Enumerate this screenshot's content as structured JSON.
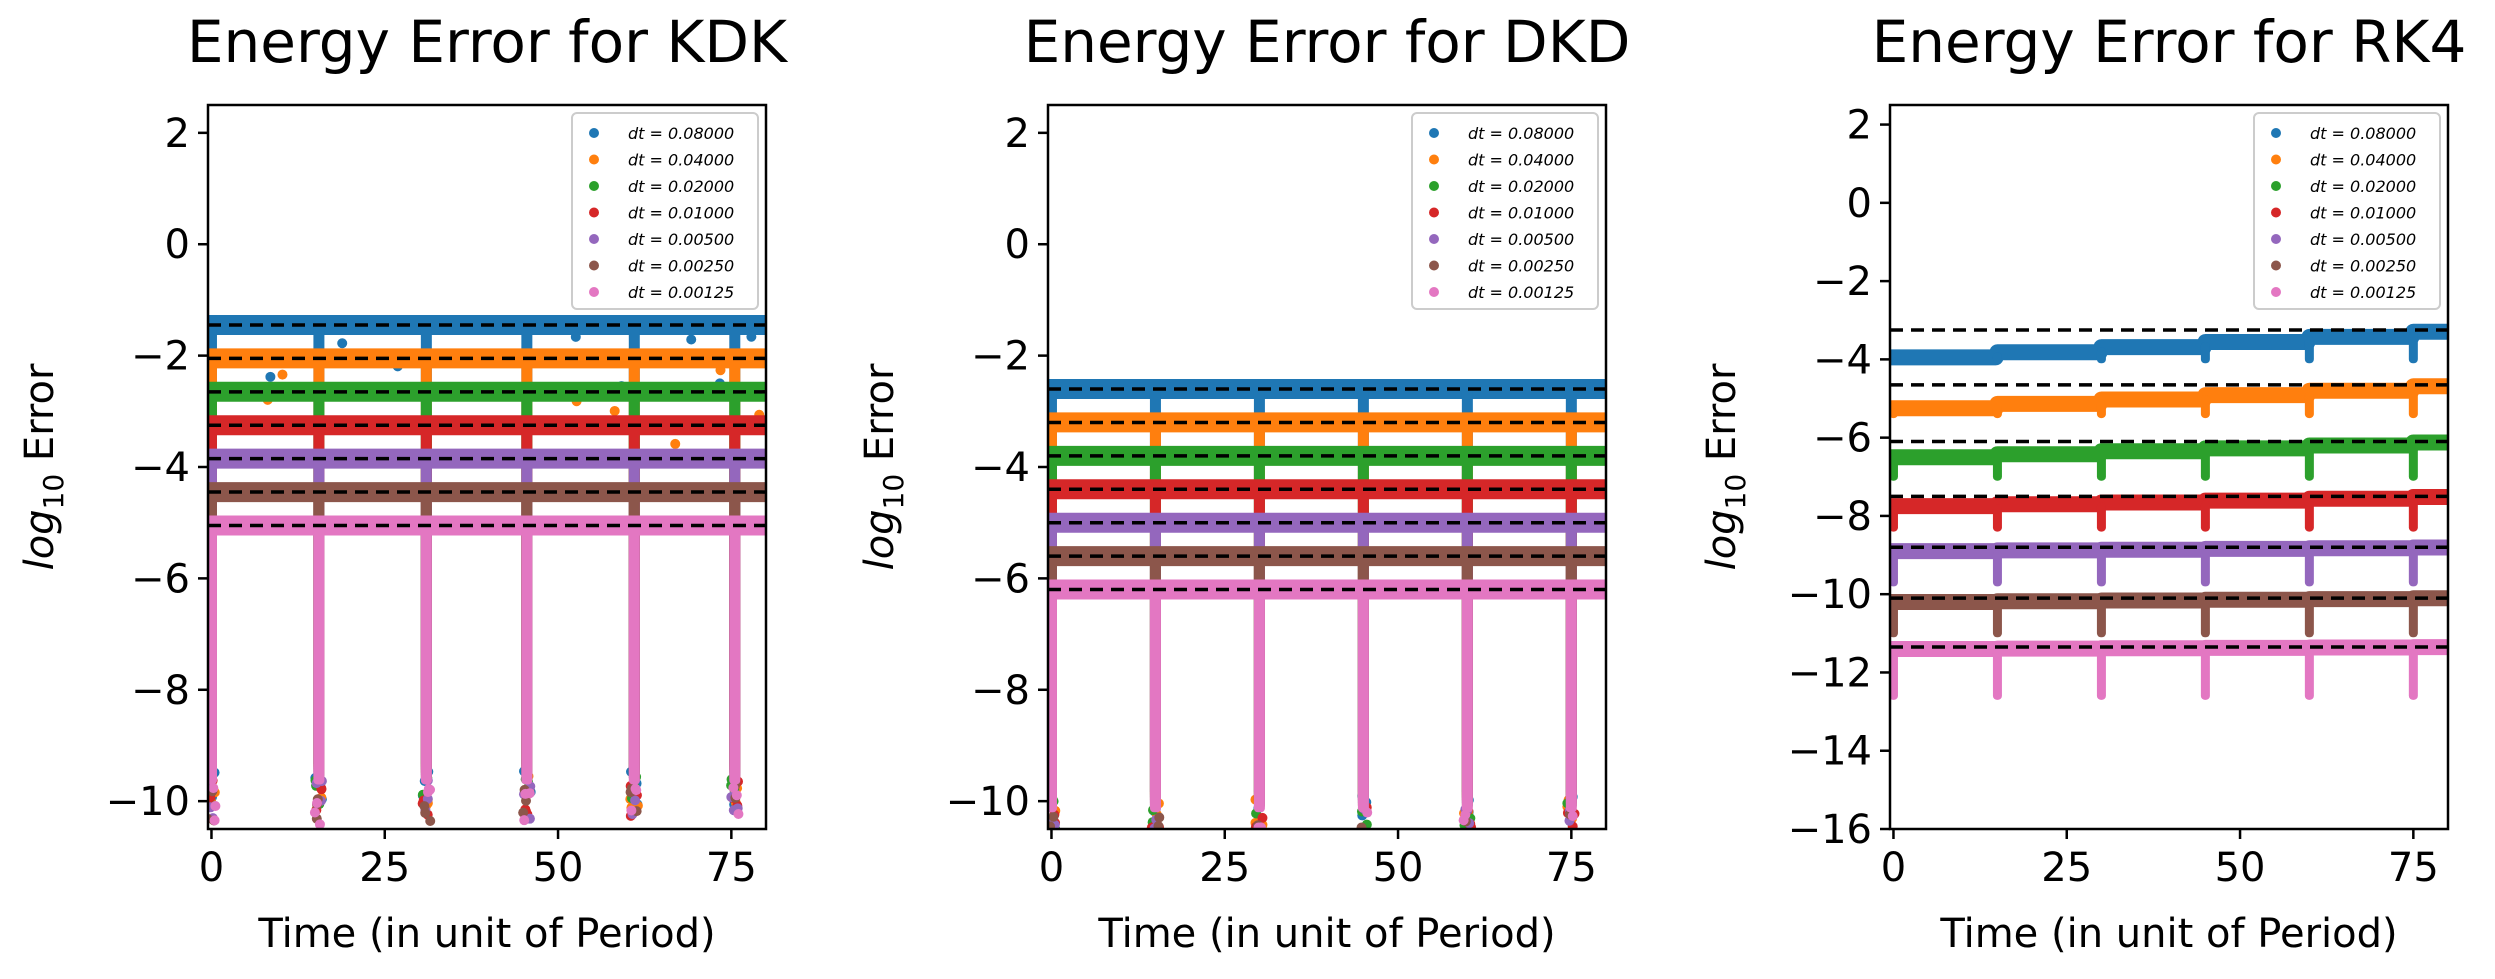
{
  "chart_data": [
    {
      "type": "scatter",
      "title": "Energy Error for KDK",
      "xlabel": "Time (in unit of Period)",
      "ylabel": "log10 Error",
      "xlim": [
        -0.5,
        80
      ],
      "ylim": [
        -10.5,
        2.5
      ],
      "xticks": [
        0,
        25,
        50,
        75
      ],
      "xtick_labels": [
        "0",
        "25",
        "50",
        "75"
      ],
      "yticks": [
        2,
        0,
        -2,
        -4,
        -6,
        -8,
        -10
      ],
      "ytick_labels": [
        "2",
        "0",
        "−2",
        "−4",
        "−6",
        "−8",
        "−10"
      ],
      "legend_position": "top-right",
      "grid": false,
      "dips_at": [
        0,
        15.5,
        31,
        45.5,
        61,
        75.5
      ],
      "dip_floor": -9.7,
      "series": [
        {
          "name": "dt = 0.08000",
          "color": "#1f77b4",
          "level": -1.45,
          "dashed_reference": -1.45
        },
        {
          "name": "dt = 0.04000",
          "color": "#ff7f0e",
          "level": -2.05,
          "dashed_reference": -2.05
        },
        {
          "name": "dt = 0.02000",
          "color": "#2ca02c",
          "level": -2.65,
          "dashed_reference": -2.65
        },
        {
          "name": "dt = 0.01000",
          "color": "#d62728",
          "level": -3.25,
          "dashed_reference": -3.25
        },
        {
          "name": "dt = 0.00500",
          "color": "#9467bd",
          "level": -3.85,
          "dashed_reference": -3.85
        },
        {
          "name": "dt = 0.00250",
          "color": "#8c564b",
          "level": -4.45,
          "dashed_reference": -4.45
        },
        {
          "name": "dt = 0.00125",
          "color": "#e377c2",
          "level": -5.05,
          "dashed_reference": -5.05
        }
      ]
    },
    {
      "type": "scatter",
      "title": "Energy Error for DKD",
      "xlabel": "Time (in unit of Period)",
      "ylabel": "log10 Error",
      "xlim": [
        -0.5,
        80
      ],
      "ylim": [
        -10.5,
        2.5
      ],
      "xticks": [
        0,
        25,
        50,
        75
      ],
      "xtick_labels": [
        "0",
        "25",
        "50",
        "75"
      ],
      "yticks": [
        2,
        0,
        -2,
        -4,
        -6,
        -8,
        -10
      ],
      "ytick_labels": [
        "2",
        "0",
        "−2",
        "−4",
        "−6",
        "−8",
        "−10"
      ],
      "legend_position": "top-right",
      "grid": false,
      "dips_at": [
        0,
        15,
        30,
        45,
        60,
        75
      ],
      "dip_floor": -10.2,
      "series": [
        {
          "name": "dt = 0.08000",
          "color": "#1f77b4",
          "level": -2.6,
          "dashed_reference": -2.6
        },
        {
          "name": "dt = 0.04000",
          "color": "#ff7f0e",
          "level": -3.2,
          "dashed_reference": -3.2
        },
        {
          "name": "dt = 0.02000",
          "color": "#2ca02c",
          "level": -3.8,
          "dashed_reference": -3.8
        },
        {
          "name": "dt = 0.01000",
          "color": "#d62728",
          "level": -4.4,
          "dashed_reference": -4.4
        },
        {
          "name": "dt = 0.00500",
          "color": "#9467bd",
          "level": -5.0,
          "dashed_reference": -5.0
        },
        {
          "name": "dt = 0.00250",
          "color": "#8c564b",
          "level": -5.6,
          "dashed_reference": -5.6
        },
        {
          "name": "dt = 0.00125",
          "color": "#e377c2",
          "level": -6.2,
          "dashed_reference": -6.2
        }
      ]
    },
    {
      "type": "scatter",
      "title": "Energy Error for RK4",
      "xlabel": "Time (in unit of Period)",
      "ylabel": "log10 Error",
      "xlim": [
        -0.5,
        80
      ],
      "ylim": [
        -16,
        2.5
      ],
      "xticks": [
        0,
        25,
        50,
        75
      ],
      "xtick_labels": [
        "0",
        "25",
        "50",
        "75"
      ],
      "yticks": [
        2,
        0,
        -2,
        -4,
        -6,
        -8,
        -10,
        -12,
        -14,
        -16
      ],
      "ytick_labels": [
        "2",
        "0",
        "−2",
        "−4",
        "−6",
        "−8",
        "−10",
        "−12",
        "−14",
        "−16"
      ],
      "legend_position": "top-right",
      "grid": false,
      "dips_at": [
        0,
        15,
        30,
        45,
        60,
        75
      ],
      "series": [
        {
          "name": "dt = 0.08000",
          "color": "#1f77b4",
          "start": -3.95,
          "end": -3.25,
          "dashed_reference": -3.25,
          "dip_to": -4.1
        },
        {
          "name": "dt = 0.04000",
          "color": "#ff7f0e",
          "start": -5.25,
          "end": -4.65,
          "dashed_reference": -4.65,
          "dip_to": -5.5
        },
        {
          "name": "dt = 0.02000",
          "color": "#2ca02c",
          "start": -6.5,
          "end": -6.1,
          "dashed_reference": -6.1,
          "dip_to": -7.1
        },
        {
          "name": "dt = 0.01000",
          "color": "#d62728",
          "start": -7.75,
          "end": -7.5,
          "dashed_reference": -7.5,
          "dip_to": -8.4
        },
        {
          "name": "dt = 0.00500",
          "color": "#9467bd",
          "start": -8.9,
          "end": -8.8,
          "dashed_reference": -8.8,
          "dip_to": -9.8
        },
        {
          "name": "dt = 0.00250",
          "color": "#8c564b",
          "start": -10.2,
          "end": -10.1,
          "dashed_reference": -10.1,
          "dip_to": -11.1
        },
        {
          "name": "dt = 0.00125",
          "color": "#e377c2",
          "start": -11.4,
          "end": -11.35,
          "dashed_reference": -11.35,
          "dip_to": -12.7
        }
      ]
    }
  ]
}
